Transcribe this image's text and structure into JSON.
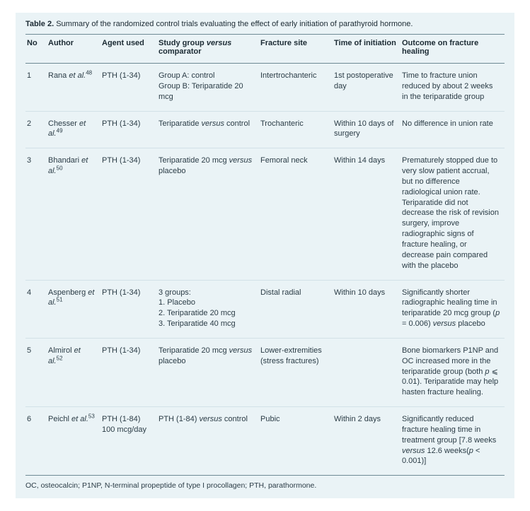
{
  "title_bold": "Table 2.",
  "title_rest": "Summary of the randomized control trials evaluating the effect of early initiation of parathyroid hormone.",
  "headers": {
    "no": "No",
    "author": "Author",
    "agent": "Agent used",
    "study_a": "Study group ",
    "study_vs": "versus",
    "study_b": " comparator",
    "site": "Fracture site",
    "time": "Time of initiation",
    "outcome": "Outcome on fracture healing"
  },
  "rows": [
    {
      "no": "1",
      "author_name": "Rana ",
      "author_it": "et al.",
      "author_sup": "48",
      "agent": "PTH (1-34)",
      "study": "Group A: control\nGroup B: Teriparatide 20 mcg",
      "site": "Intertrochanteric",
      "time": "1st postoperative day",
      "outcome": "Time to fracture union reduced by about 2 weeks in the teriparatide group"
    },
    {
      "no": "2",
      "author_name": "Chesser ",
      "author_it": "et al.",
      "author_sup": "49",
      "agent": "PTH (1-34)",
      "study_a": "Teriparatide ",
      "study_vs": "versus",
      "study_b": " control",
      "site": "Trochanteric",
      "time": "Within 10 days of surgery",
      "outcome": "No difference in union rate"
    },
    {
      "no": "3",
      "author_name": "Bhandari ",
      "author_it": "et al.",
      "author_sup": "50",
      "agent": "PTH (1-34)",
      "study_a": "Teriparatide 20 mcg ",
      "study_vs": "versus",
      "study_b": " placebo",
      "site": "Femoral neck",
      "time": "Within 14 days",
      "outcome": "Prematurely stopped due to very slow patient accrual, but no difference radiological union rate. Teriparatide did not decrease the risk of revision surgery, improve radiographic signs of fracture healing, or decrease pain compared with the placebo"
    },
    {
      "no": "4",
      "author_name": "Aspenberg ",
      "author_it": "et al.",
      "author_sup": "51",
      "agent": "PTH (1-34)",
      "study": "3 groups:\n1. Placebo\n2. Teriparatide 20 mcg\n3. Teriparatide 40 mcg",
      "site": "Distal radial",
      "time": "Within 10 days",
      "outcome_a": "Significantly shorter radiographic healing time in teriparatide 20 mcg group (",
      "outcome_p": "p",
      "outcome_b": " = 0.006) ",
      "outcome_vs": "versus",
      "outcome_c": " placebo"
    },
    {
      "no": "5",
      "author_name": "Almirol ",
      "author_it": "et al.",
      "author_sup": "52",
      "agent": "PTH (1-34)",
      "study_a": "Teriparatide 20 mcg ",
      "study_vs": "versus",
      "study_b": " placebo",
      "site": "Lower-extremities (stress fractures)",
      "time": "",
      "outcome_a": "Bone biomarkers P1NP and OC increased more in the teriparatide group (both ",
      "outcome_p": "p",
      "outcome_b": " ⩽ 0.01). Teriparatide may help hasten fracture healing."
    },
    {
      "no": "6",
      "author_name": "Peichl ",
      "author_it": "et al.",
      "author_sup": "53",
      "agent": "PTH (1-84) 100 mcg/day",
      "study_a": "PTH (1-84) ",
      "study_vs": "versus",
      "study_b": " control",
      "site": "Pubic",
      "time": "Within 2 days",
      "outcome_a": "Significantly reduced fracture healing time in treatment group [7.8 weeks ",
      "outcome_vs": "versus",
      "outcome_b": " 12.6 weeks(",
      "outcome_p": "p",
      "outcome_c": " < 0.001)]"
    }
  ],
  "footnote": "OC, osteocalcin; P1NP, N-terminal propeptide of type I procollagen; PTH, parathormone."
}
